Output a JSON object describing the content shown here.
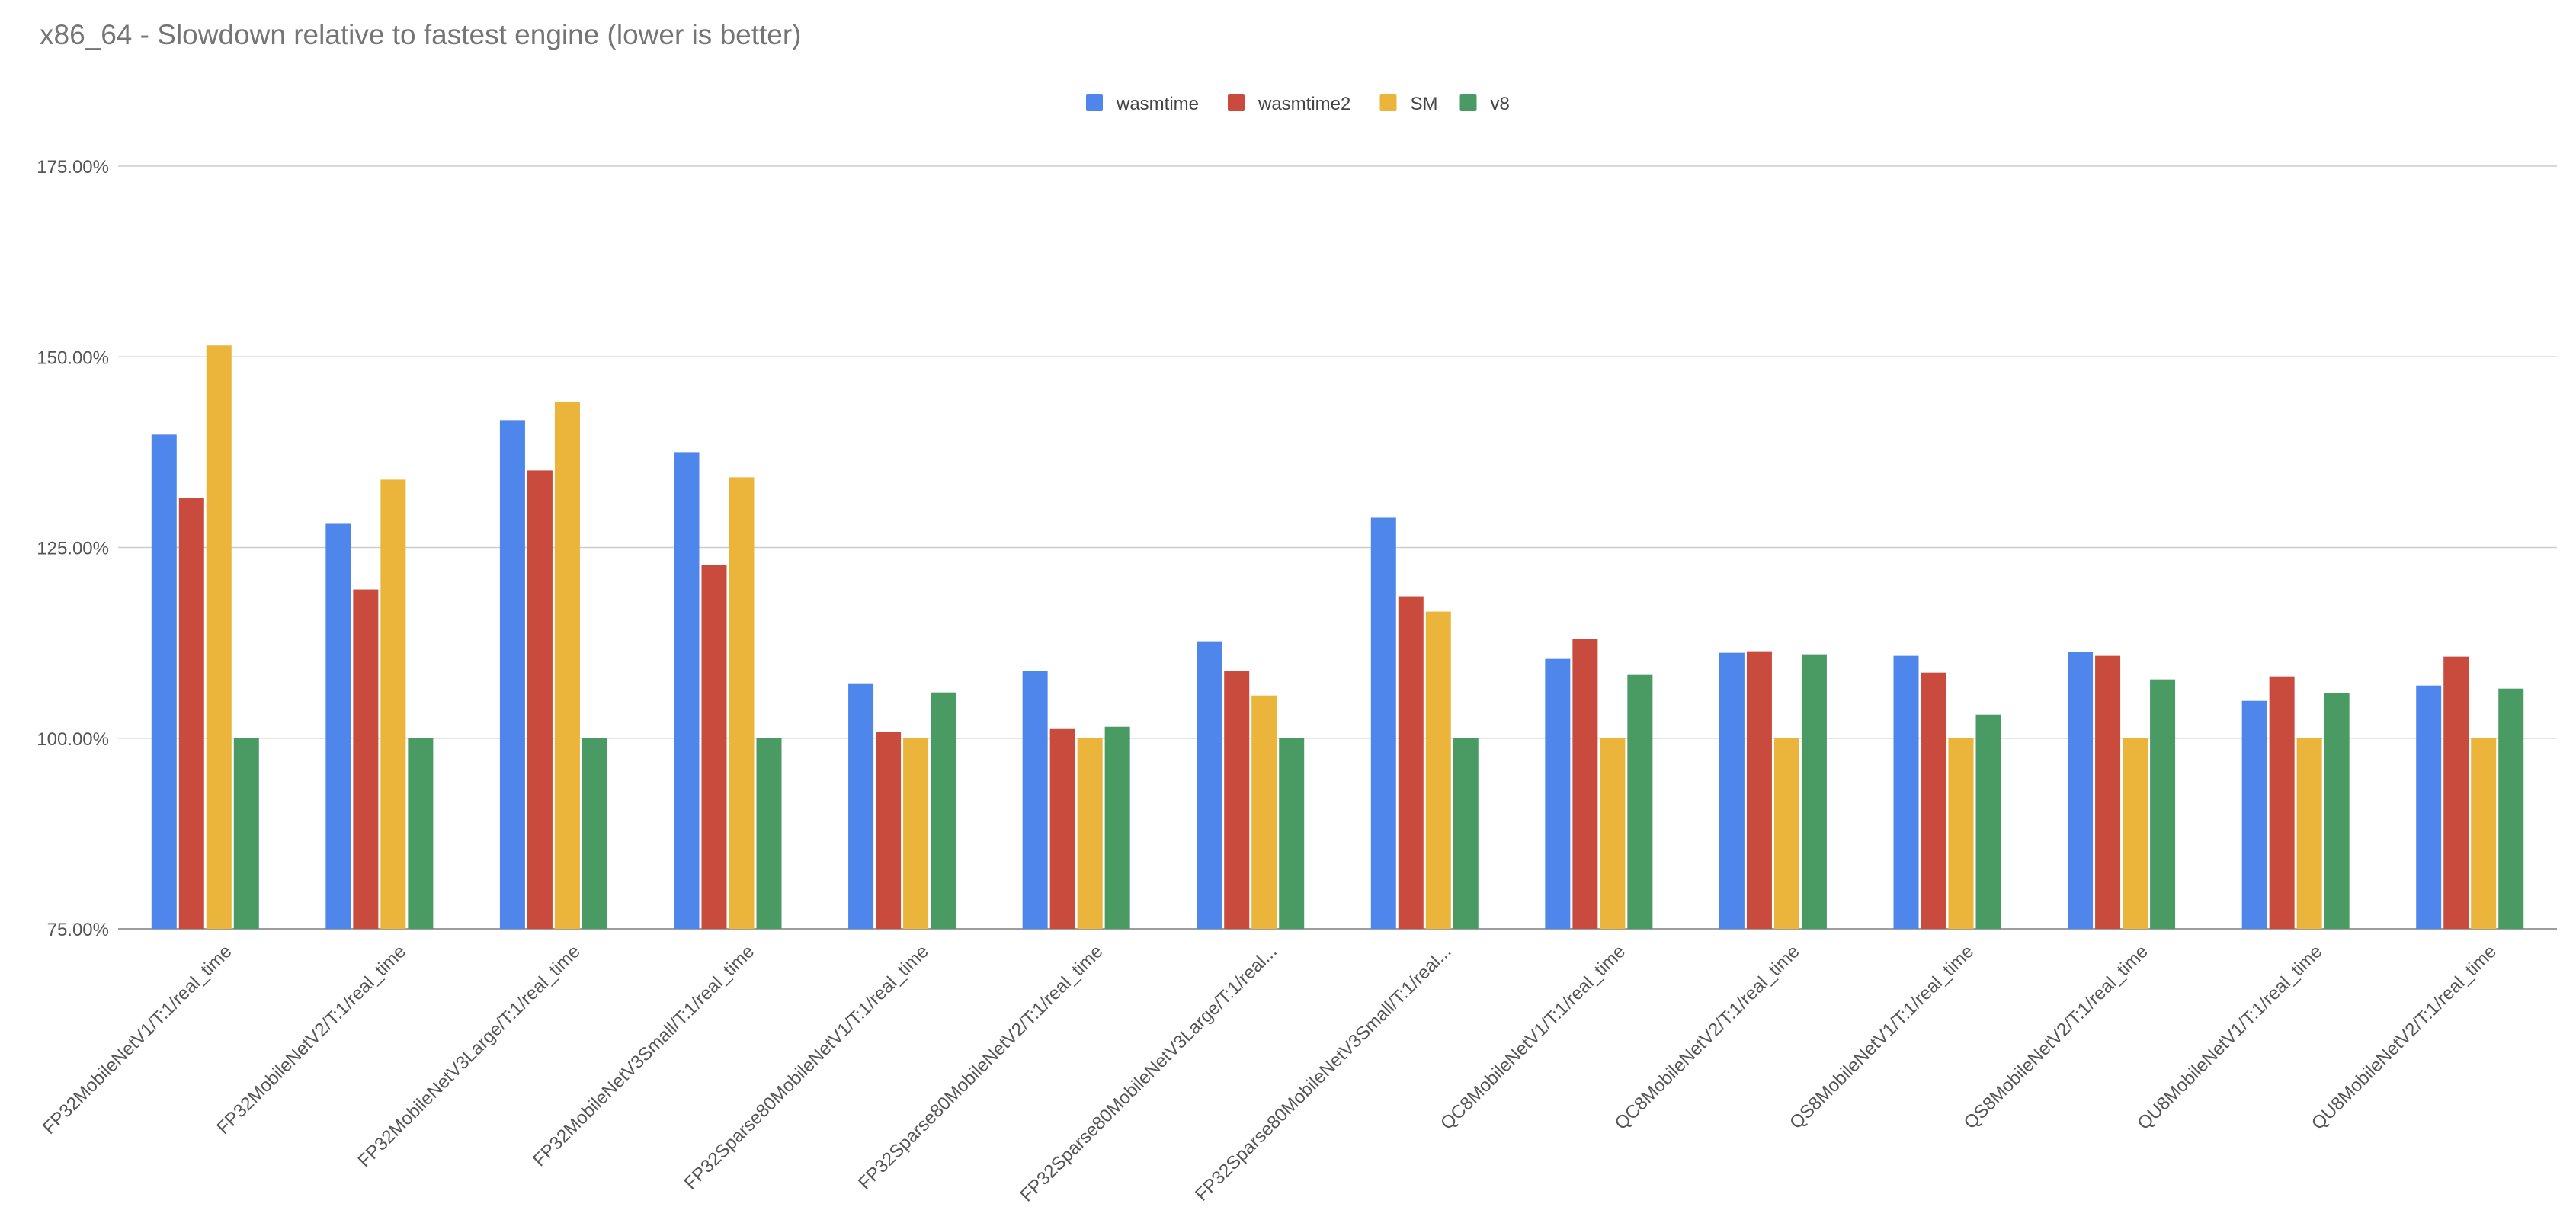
{
  "chart_data": {
    "type": "bar",
    "title": "x86_64 - Slowdown relative to fastest engine (lower is better)",
    "xlabel": "",
    "ylabel": "",
    "ylim": [
      75,
      175
    ],
    "yticks": [
      75,
      100,
      125,
      150,
      175
    ],
    "ytick_labels": [
      "75.00%",
      "100.00%",
      "125.00%",
      "150.00%",
      "175.00%"
    ],
    "grid": true,
    "legend_position": "top",
    "categories": [
      "FP32MobileNetV1/T:1/real_time",
      "FP32MobileNetV2/T:1/real_time",
      "FP32MobileNetV3Large/T:1/real_time",
      "FP32MobileNetV3Small/T:1/real_time",
      "FP32Sparse80MobileNetV1/T:1/real_time",
      "FP32Sparse80MobileNetV2/T:1/real_time",
      "FP32Sparse80MobileNetV3Large/T:1/real...",
      "FP32Sparse80MobileNetV3Small/T:1/real...",
      "QC8MobileNetV1/T:1/real_time",
      "QC8MobileNetV2/T:1/real_time",
      "QS8MobileNetV1/T:1/real_time",
      "QS8MobileNetV2/T:1/real_time",
      "QU8MobileNetV1/T:1/real_time",
      "QU8MobileNetV2/T:1/real_time"
    ],
    "series": [
      {
        "name": "wasmtime",
        "color": "#4f86ec",
        "values": [
          139.8,
          128.1,
          141.7,
          137.5,
          107.2,
          108.8,
          112.7,
          128.9,
          110.4,
          111.2,
          110.8,
          111.3,
          104.9,
          106.9
        ]
      },
      {
        "name": "wasmtime2",
        "color": "#c84b3e",
        "values": [
          131.5,
          119.5,
          135.1,
          122.7,
          100.8,
          101.2,
          108.8,
          118.6,
          113.0,
          111.4,
          108.6,
          110.8,
          108.1,
          110.7
        ]
      },
      {
        "name": "SM",
        "color": "#ebb43a",
        "values": [
          151.5,
          133.9,
          144.1,
          134.2,
          100.0,
          100.0,
          105.6,
          116.6,
          100.0,
          100.0,
          100.0,
          100.0,
          100.0,
          100.0
        ]
      },
      {
        "name": "v8",
        "color": "#4a9a63",
        "values": [
          100.0,
          100.0,
          100.0,
          100.0,
          106.0,
          101.5,
          100.0,
          100.0,
          108.3,
          111.0,
          103.1,
          107.7,
          105.9,
          106.5
        ]
      }
    ]
  }
}
